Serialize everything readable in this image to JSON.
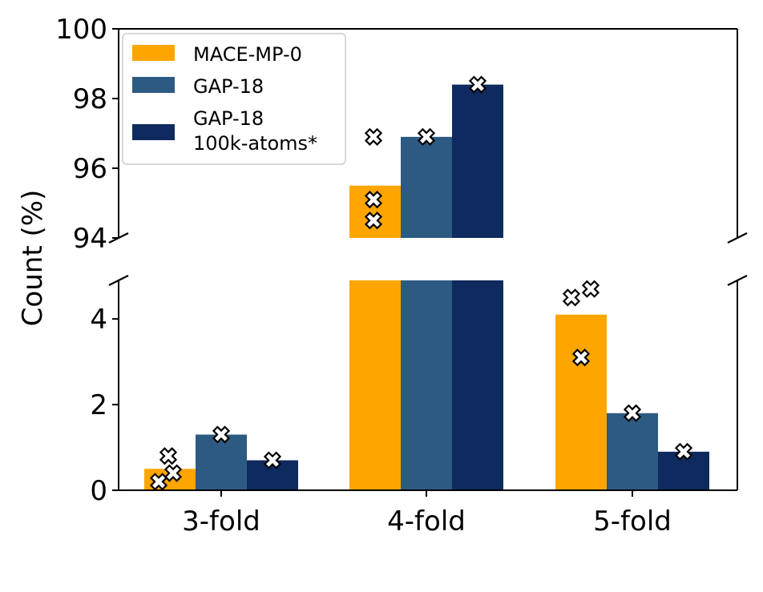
{
  "chart_data": {
    "type": "bar",
    "categories": [
      "3-fold",
      "4-fold",
      "5-fold"
    ],
    "ylabel": "Count (%)",
    "broken_axis": true,
    "lower_ylim": [
      0,
      4.9
    ],
    "upper_ylim": [
      94,
      100
    ],
    "lower_yticks": [
      "0",
      "2",
      "4"
    ],
    "upper_yticks": [
      "94",
      "96",
      "98",
      "100"
    ],
    "legend_position": "upper-left",
    "series": [
      {
        "name": "MACE-MP-0",
        "color": "#FFA500",
        "values": [
          0.5,
          95.5,
          4.1
        ],
        "individual_runs": [
          [
            0.2,
            0.4,
            0.8
          ],
          [
            94.5,
            95.1,
            96.9
          ],
          [
            3.1,
            4.5,
            4.7
          ]
        ]
      },
      {
        "name": "GAP-18",
        "color": "#2D5A82",
        "values": [
          1.3,
          96.9,
          1.8
        ],
        "individual_runs": [
          [
            1.3
          ],
          [
            96.9
          ],
          [
            1.8
          ]
        ]
      },
      {
        "name": "GAP-18\n100k-atoms*",
        "color": "#0F2A5F",
        "values": [
          0.7,
          98.4,
          0.9
        ],
        "individual_runs": [
          [
            0.7
          ],
          [
            98.4
          ],
          [
            0.9
          ]
        ]
      }
    ]
  }
}
